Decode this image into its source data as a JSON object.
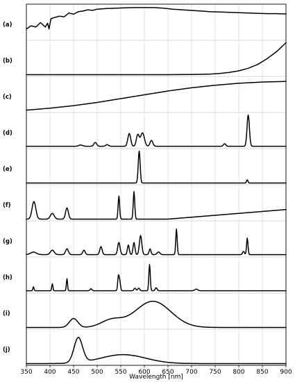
{
  "chart_data": {
    "type": "line",
    "xlabel": "Wavelength [nm]",
    "xlim": [
      350,
      900
    ],
    "xticks": [
      350,
      400,
      450,
      500,
      550,
      600,
      650,
      700,
      750,
      800,
      850,
      900
    ],
    "grid": true,
    "panels": [
      {
        "label": "(a)",
        "x": [
          350,
          360,
          370,
          380,
          390,
          395,
          398,
          402,
          410,
          420,
          430,
          440,
          450,
          460,
          470,
          480,
          490,
          500,
          520,
          540,
          560,
          580,
          600,
          620,
          640,
          660,
          680,
          700,
          720,
          740,
          760,
          780,
          800,
          820,
          840,
          860,
          880,
          900
        ],
        "y": [
          0.3,
          0.4,
          0.36,
          0.5,
          0.36,
          0.48,
          0.3,
          0.62,
          0.66,
          0.7,
          0.68,
          0.8,
          0.76,
          0.84,
          0.86,
          0.9,
          0.88,
          0.92,
          0.94,
          0.95,
          0.96,
          0.97,
          0.97,
          0.97,
          0.95,
          0.92,
          0.9,
          0.88,
          0.86,
          0.84,
          0.83,
          0.82,
          0.81,
          0.8,
          0.79,
          0.78,
          0.78,
          0.77
        ]
      },
      {
        "label": "(b)",
        "x": [
          350,
          400,
          450,
          500,
          550,
          600,
          650,
          700,
          720,
          740,
          760,
          780,
          800,
          820,
          840,
          860,
          880,
          900
        ],
        "y": [
          0,
          0,
          0,
          0,
          0,
          0,
          0,
          0.005,
          0.01,
          0.02,
          0.04,
          0.07,
          0.12,
          0.2,
          0.32,
          0.5,
          0.72,
          1.0
        ]
      },
      {
        "label": "(c)",
        "x": [
          350,
          400,
          450,
          500,
          550,
          600,
          650,
          700,
          750,
          800,
          850,
          900
        ],
        "y": [
          0.02,
          0.08,
          0.16,
          0.26,
          0.38,
          0.5,
          0.62,
          0.72,
          0.8,
          0.86,
          0.9,
          0.92
        ]
      },
      {
        "label": "(d)",
        "baseline": 0.02,
        "peaks": [
          [
            465,
            0.04,
            4
          ],
          [
            496,
            0.12,
            3
          ],
          [
            521,
            0.05,
            3
          ],
          [
            568,
            0.4,
            3
          ],
          [
            586,
            0.36,
            3
          ],
          [
            596,
            0.42,
            4
          ],
          [
            615,
            0.18,
            3
          ],
          [
            770,
            0.08,
            2.5
          ],
          [
            820,
            0.98,
            2.5
          ]
        ]
      },
      {
        "label": "(e)",
        "baseline": 0.0,
        "peaks": [
          [
            589,
            1.0,
            2
          ],
          [
            818,
            0.1,
            1.5
          ]
        ]
      },
      {
        "label": "(f)",
        "baseline": 0.0,
        "ramp": [
          650,
          900,
          0.3
        ],
        "peaks": [
          [
            366,
            0.55,
            4
          ],
          [
            405,
            0.18,
            4
          ],
          [
            436,
            0.35,
            3
          ],
          [
            546,
            0.72,
            1.6
          ],
          [
            578,
            0.86,
            1.6
          ]
        ]
      },
      {
        "label": "(g)",
        "baseline": 0.02,
        "peaks": [
          [
            365,
            0.08,
            6
          ],
          [
            405,
            0.14,
            4
          ],
          [
            436,
            0.18,
            3
          ],
          [
            472,
            0.14,
            2.5
          ],
          [
            508,
            0.25,
            2.5
          ],
          [
            546,
            0.38,
            2.5
          ],
          [
            566,
            0.3,
            2
          ],
          [
            578,
            0.38,
            2
          ],
          [
            592,
            0.6,
            2.5
          ],
          [
            612,
            0.18,
            2
          ],
          [
            630,
            0.08,
            3
          ],
          [
            668,
            0.8,
            1.5
          ],
          [
            810,
            0.1,
            2
          ],
          [
            818,
            0.52,
            1.5
          ]
        ]
      },
      {
        "label": "(h)",
        "baseline": 0.02,
        "peaks": [
          [
            365,
            0.12,
            1.2
          ],
          [
            405,
            0.22,
            1.2
          ],
          [
            436,
            0.38,
            1.2
          ],
          [
            487,
            0.06,
            2
          ],
          [
            545,
            0.46,
            1.5
          ],
          [
            548,
            0.28,
            1.5
          ],
          [
            580,
            0.08,
            2
          ],
          [
            588,
            0.08,
            2
          ],
          [
            611,
            0.82,
            1.5
          ],
          [
            625,
            0.09,
            2
          ],
          [
            710,
            0.05,
            3
          ]
        ]
      },
      {
        "label": "(i)",
        "baseline": 0.0,
        "peaks": [
          [
            450,
            0.28,
            9
          ],
          [
            530,
            0.22,
            22
          ],
          [
            618,
            0.82,
            38
          ]
        ]
      },
      {
        "label": "(j)",
        "baseline": 0.0,
        "peaks": [
          [
            460,
            0.78,
            9
          ],
          [
            555,
            0.28,
            48
          ]
        ]
      }
    ]
  }
}
